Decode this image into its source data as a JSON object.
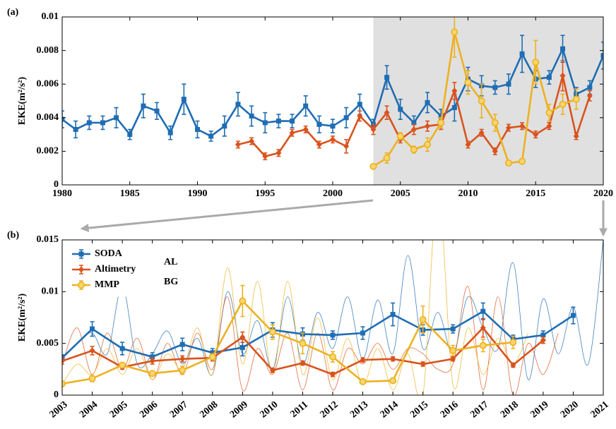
{
  "chart_data": [
    {
      "type": "line",
      "panel_label": "(a)",
      "ylabel": "EKE(m²/s²)",
      "xlim": [
        1980,
        2020
      ],
      "xticks": [
        1980,
        1985,
        1990,
        1995,
        2000,
        2005,
        2010,
        2015,
        2020
      ],
      "ylim": [
        0,
        0.01
      ],
      "yticks": [
        0,
        0.002,
        0.004,
        0.006,
        0.008,
        0.01
      ],
      "highlight_range": [
        2003,
        2020
      ],
      "series": [
        {
          "color": "#1f6db3",
          "marker": "square",
          "x": [
            1980,
            1981,
            1982,
            1983,
            1984,
            1985,
            1986,
            1987,
            1988,
            1989,
            1990,
            1991,
            1992,
            1993,
            1994,
            1995,
            1996,
            1997,
            1998,
            1999,
            2000,
            2001,
            2002,
            2003,
            2004,
            2005,
            2006,
            2007,
            2008,
            2009,
            2010,
            2011,
            2012,
            2013,
            2014,
            2015,
            2016,
            2017,
            2018,
            2019,
            2020
          ],
          "values": [
            0.0039,
            0.0033,
            0.0037,
            0.0037,
            0.004,
            0.003,
            0.0047,
            0.0044,
            0.0031,
            0.0051,
            0.0033,
            0.0029,
            0.0035,
            0.0048,
            0.0041,
            0.0037,
            0.0038,
            0.0038,
            0.0047,
            0.0036,
            0.0035,
            0.004,
            0.0048,
            0.0036,
            0.0064,
            0.0045,
            0.0037,
            0.0049,
            0.0041,
            0.0046,
            0.0063,
            0.0059,
            0.0058,
            0.006,
            0.0078,
            0.0063,
            0.0064,
            0.0081,
            0.0054,
            0.0058,
            0.0077
          ],
          "errors": [
            0.0005,
            0.0005,
            0.0004,
            0.0004,
            0.0006,
            0.0003,
            0.0007,
            0.0005,
            0.0004,
            0.0009,
            0.0005,
            0.0003,
            0.0006,
            0.0007,
            0.0006,
            0.0006,
            0.0004,
            0.0004,
            0.0006,
            0.0005,
            0.0004,
            0.0006,
            0.0006,
            0.0003,
            0.0007,
            0.0006,
            0.0004,
            0.0006,
            0.0004,
            0.0008,
            0.0007,
            0.0006,
            0.0004,
            0.0006,
            0.0011,
            0.0005,
            0.0004,
            0.0008,
            0.0004,
            0.0004,
            0.0008
          ]
        },
        {
          "color": "#d9531e",
          "marker": "diamond",
          "x": [
            1993,
            1994,
            1995,
            1996,
            1997,
            1998,
            1999,
            2000,
            2001,
            2002,
            2003,
            2004,
            2005,
            2006,
            2007,
            2008,
            2009,
            2010,
            2011,
            2012,
            2013,
            2014,
            2015,
            2016,
            2017,
            2018,
            2019
          ],
          "values": [
            0.0024,
            0.0026,
            0.0017,
            0.0019,
            0.0031,
            0.0033,
            0.0024,
            0.0027,
            0.0023,
            0.0041,
            0.0033,
            0.0043,
            0.0027,
            0.0033,
            0.0035,
            0.0036,
            0.0056,
            0.0024,
            0.0031,
            0.002,
            0.0034,
            0.0035,
            0.003,
            0.0035,
            0.0065,
            0.0029,
            0.0053
          ],
          "errors": [
            0.0002,
            0.0002,
            0.0002,
            0.0002,
            0.0002,
            0.0002,
            0.0002,
            0.0002,
            0.0004,
            0.0003,
            0.0003,
            0.0004,
            0.0002,
            0.0003,
            0.0003,
            0.0003,
            0.0005,
            0.0002,
            0.0002,
            0.0002,
            0.0002,
            0.0002,
            0.0002,
            0.0002,
            0.0009,
            0.0002,
            0.0003
          ]
        },
        {
          "color": "#edb120",
          "marker": "circle",
          "x": [
            2003,
            2004,
            2005,
            2006,
            2007,
            2008,
            2009,
            2010,
            2011,
            2012,
            2013,
            2014,
            2015,
            2016,
            2017,
            2018
          ],
          "values": [
            0.0011,
            0.0016,
            0.0029,
            0.0021,
            0.0024,
            0.0037,
            0.0091,
            0.0061,
            0.005,
            0.0037,
            0.0013,
            0.0014,
            0.0073,
            0.0043,
            0.0048,
            0.0051
          ],
          "errors": [
            0.0001,
            0.0003,
            0.0002,
            0.0002,
            0.0004,
            0.0003,
            0.0015,
            0.0007,
            0.001,
            0.0005,
            0.0001,
            0.0001,
            0.0013,
            0.0005,
            0.0006,
            0.0006
          ]
        }
      ]
    },
    {
      "type": "line",
      "panel_label": "(b)",
      "ylabel": "EKE(m²/s²)",
      "xlim": [
        2003,
        2021
      ],
      "xticks": [
        2003,
        2004,
        2005,
        2006,
        2007,
        2008,
        2009,
        2010,
        2011,
        2012,
        2013,
        2014,
        2015,
        2016,
        2017,
        2018,
        2019,
        2020,
        2021
      ],
      "ylim": [
        0,
        0.015
      ],
      "yticks": [
        0,
        0.005,
        0.01,
        0.015
      ],
      "annotations": [
        "AL",
        "BG"
      ],
      "series": [
        {
          "color": "#1f6db3",
          "thin": true,
          "x": [
            2003,
            2003.5,
            2004,
            2004.5,
            2005,
            2005.5,
            2006,
            2006.5,
            2007,
            2007.5,
            2008,
            2008.5,
            2009,
            2009.5,
            2010,
            2010.5,
            2011,
            2011.5,
            2012,
            2012.5,
            2013,
            2013.5,
            2014,
            2014.5,
            2015,
            2015.5,
            2016,
            2016.5,
            2017,
            2017.5,
            2018,
            2018.5,
            2019,
            2019.5,
            2020,
            2020.5,
            2021
          ],
          "values": [
            0.0035,
            0.005,
            0.006,
            0.004,
            0.0105,
            0.003,
            0.004,
            0.0062,
            0.003,
            0.0055,
            0.002,
            0.01,
            0.004,
            0.0072,
            0.0025,
            0.0095,
            0.003,
            0.008,
            0.0045,
            0.0095,
            0.0035,
            0.0092,
            0.004,
            0.0135,
            0.0045,
            0.008,
            0.004,
            0.0095,
            0.0065,
            0.0045,
            0.0128,
            0.0015,
            0.0093,
            0.004,
            0.0085,
            0.003,
            0.015
          ]
        },
        {
          "color": "#d9531e",
          "thin": true,
          "x": [
            2003,
            2003.5,
            2004,
            2004.5,
            2005,
            2005.5,
            2006,
            2006.5,
            2007,
            2007.5,
            2008,
            2008.5,
            2009,
            2009.5,
            2010,
            2010.5,
            2011,
            2011.5,
            2012,
            2012.5,
            2013,
            2013.5,
            2014,
            2014.5,
            2015,
            2015.5,
            2016,
            2016.5,
            2017,
            2017.5,
            2018,
            2018.5,
            2019,
            2019.5
          ],
          "values": [
            0.003,
            0.0065,
            0.002,
            0.006,
            0.0025,
            0.0055,
            0.0015,
            0.005,
            0.002,
            0.006,
            0.0025,
            0.0095,
            0.0005,
            0.0045,
            0.002,
            0.006,
            0.0005,
            0.006,
            0.0005,
            0.0045,
            0.003,
            0.005,
            0.0025,
            0.0045,
            0.004,
            0.0025,
            0.003,
            0.0105,
            0.0005,
            0.0095,
            0,
            0.005,
            0.002,
            0.006
          ]
        },
        {
          "color": "#edb120",
          "thin": true,
          "x": [
            2003,
            2003.5,
            2004,
            2004.5,
            2005,
            2005.5,
            2006,
            2006.5,
            2007,
            2007.5,
            2008,
            2008.5,
            2009,
            2009.5,
            2010,
            2010.5,
            2011,
            2011.5,
            2012,
            2012.5,
            2013,
            2013.5,
            2014,
            2014.5,
            2015,
            2015.5,
            2016,
            2016.5,
            2017,
            2017.5,
            2018,
            2018.5
          ],
          "values": [
            0.001,
            0.003,
            0.002,
            0.0045,
            0.002,
            0.0045,
            0.0015,
            0.004,
            0.0025,
            0.0065,
            0.002,
            0.0123,
            0.003,
            0.011,
            0.002,
            0.011,
            0.002,
            0.0075,
            0.0015,
            0.0055,
            0.001,
            0.0045,
            0.0005,
            0.004,
            0,
            0.02,
            0.001,
            0.0065,
            0.002,
            0.0055,
            0.003,
            0.006
          ]
        },
        {
          "name": "SODA",
          "color": "#1f6db3",
          "marker": "square",
          "x": [
            2003,
            2004,
            2005,
            2006,
            2007,
            2008,
            2009,
            2010,
            2011,
            2012,
            2013,
            2014,
            2015,
            2016,
            2017,
            2018,
            2019,
            2020
          ],
          "values": [
            0.0036,
            0.0064,
            0.0045,
            0.0037,
            0.0049,
            0.0041,
            0.0046,
            0.0063,
            0.0059,
            0.0058,
            0.006,
            0.0078,
            0.0063,
            0.0064,
            0.0081,
            0.0054,
            0.0058,
            0.0077
          ],
          "errors": [
            0.0003,
            0.0007,
            0.0006,
            0.0004,
            0.0006,
            0.0004,
            0.0008,
            0.0007,
            0.0006,
            0.0004,
            0.0006,
            0.0011,
            0.0005,
            0.0004,
            0.0008,
            0.0004,
            0.0004,
            0.0008
          ]
        },
        {
          "name": "Altimetry",
          "color": "#d9531e",
          "marker": "diamond",
          "x": [
            2003,
            2004,
            2005,
            2006,
            2007,
            2008,
            2009,
            2010,
            2011,
            2012,
            2013,
            2014,
            2015,
            2016,
            2017,
            2018,
            2019
          ],
          "values": [
            0.0033,
            0.0043,
            0.0027,
            0.0033,
            0.0035,
            0.0036,
            0.0056,
            0.0024,
            0.0031,
            0.002,
            0.0034,
            0.0035,
            0.003,
            0.0035,
            0.0065,
            0.0029,
            0.0053
          ],
          "errors": [
            0.0003,
            0.0004,
            0.0002,
            0.0003,
            0.0003,
            0.0003,
            0.0005,
            0.0002,
            0.0002,
            0.0002,
            0.0002,
            0.0002,
            0.0002,
            0.0002,
            0.0009,
            0.0002,
            0.0003
          ]
        },
        {
          "name": "MMP",
          "color": "#edb120",
          "marker": "circle",
          "x": [
            2003,
            2004,
            2005,
            2006,
            2007,
            2008,
            2009,
            2010,
            2011,
            2012,
            2013,
            2014,
            2015,
            2016,
            2017,
            2018
          ],
          "values": [
            0.0011,
            0.0016,
            0.0029,
            0.0021,
            0.0024,
            0.0037,
            0.0091,
            0.0061,
            0.005,
            0.0037,
            0.0013,
            0.0014,
            0.0073,
            0.0043,
            0.0048,
            0.0051
          ],
          "errors": [
            0.0001,
            0.0003,
            0.0002,
            0.0002,
            0.0004,
            0.0003,
            0.0015,
            0.0007,
            0.001,
            0.0005,
            0.0001,
            0.0001,
            0.0013,
            0.0005,
            0.0006,
            0.0006
          ]
        }
      ]
    }
  ]
}
